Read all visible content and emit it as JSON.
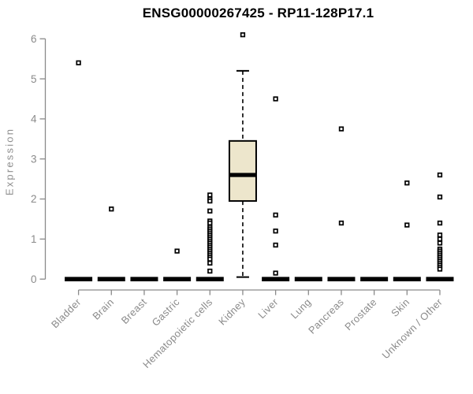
{
  "figure": {
    "title": "ENSG00000267425 - RP11-128P17.1",
    "ylabel": "Expression"
  },
  "chart_data": {
    "type": "boxplot",
    "title": "ENSG00000267425 - RP11-128P17.1",
    "xlabel": "",
    "ylabel": "Expression",
    "ylim": [
      0,
      6.2
    ],
    "yticks": [
      0,
      1,
      2,
      3,
      4,
      5,
      6
    ],
    "grid": false,
    "legend_position": "none",
    "colors": {
      "box_fill": "#EDE6CC",
      "box_stroke": "#000000",
      "median": "#000000",
      "outlier": "#000000",
      "axis": "#8A8A8A",
      "tick_label": "#8A8A8A",
      "title": "#000000"
    },
    "categories": [
      "Bladder",
      "Brain",
      "Breast",
      "Gastric",
      "Hematopoietic cells",
      "Kidney",
      "Liver",
      "Lung",
      "Pancreas",
      "Prostate",
      "Skin",
      "Unknown / Other"
    ],
    "boxes": [
      {
        "category": "Bladder",
        "whisker_low": 0,
        "q1": 0,
        "median": 0,
        "q3": 0,
        "whisker_high": 0,
        "outliers": [
          5.4
        ]
      },
      {
        "category": "Brain",
        "whisker_low": 0,
        "q1": 0,
        "median": 0,
        "q3": 0,
        "whisker_high": 0,
        "outliers": [
          1.75
        ]
      },
      {
        "category": "Breast",
        "whisker_low": 0,
        "q1": 0,
        "median": 0,
        "q3": 0,
        "whisker_high": 0,
        "outliers": []
      },
      {
        "category": "Gastric",
        "whisker_low": 0,
        "q1": 0,
        "median": 0,
        "q3": 0,
        "whisker_high": 0,
        "outliers": [
          0.7
        ]
      },
      {
        "category": "Hematopoietic cells",
        "whisker_low": 0,
        "q1": 0,
        "median": 0,
        "q3": 0,
        "whisker_high": 0,
        "outliers": [
          2.1,
          2.0,
          1.95,
          1.7,
          1.45,
          1.4,
          1.3,
          1.25,
          1.2,
          1.15,
          1.1,
          1.05,
          1.0,
          0.95,
          0.9,
          0.85,
          0.8,
          0.75,
          0.7,
          0.65,
          0.6,
          0.55,
          0.5,
          0.4,
          0.2
        ]
      },
      {
        "category": "Kidney",
        "whisker_low": 0.05,
        "q1": 1.95,
        "median": 2.6,
        "q3": 3.45,
        "whisker_high": 5.2,
        "outliers": [
          6.1
        ]
      },
      {
        "category": "Liver",
        "whisker_low": 0,
        "q1": 0,
        "median": 0,
        "q3": 0,
        "whisker_high": 0,
        "outliers": [
          4.5,
          1.6,
          1.2,
          0.85,
          0.15
        ]
      },
      {
        "category": "Lung",
        "whisker_low": 0,
        "q1": 0,
        "median": 0,
        "q3": 0,
        "whisker_high": 0,
        "outliers": []
      },
      {
        "category": "Pancreas",
        "whisker_low": 0,
        "q1": 0,
        "median": 0,
        "q3": 0,
        "whisker_high": 0,
        "outliers": [
          3.75,
          1.4
        ]
      },
      {
        "category": "Prostate",
        "whisker_low": 0,
        "q1": 0,
        "median": 0,
        "q3": 0,
        "whisker_high": 0,
        "outliers": []
      },
      {
        "category": "Skin",
        "whisker_low": 0,
        "q1": 0,
        "median": 0,
        "q3": 0,
        "whisker_high": 0,
        "outliers": [
          2.4,
          1.35
        ]
      },
      {
        "category": "Unknown / Other",
        "whisker_low": 0,
        "q1": 0,
        "median": 0,
        "q3": 0,
        "whisker_high": 0,
        "outliers": [
          2.6,
          2.05,
          1.4,
          1.1,
          1.0,
          0.9,
          0.75,
          0.7,
          0.65,
          0.6,
          0.55,
          0.5,
          0.45,
          0.4,
          0.35,
          0.3,
          0.25
        ]
      }
    ]
  }
}
